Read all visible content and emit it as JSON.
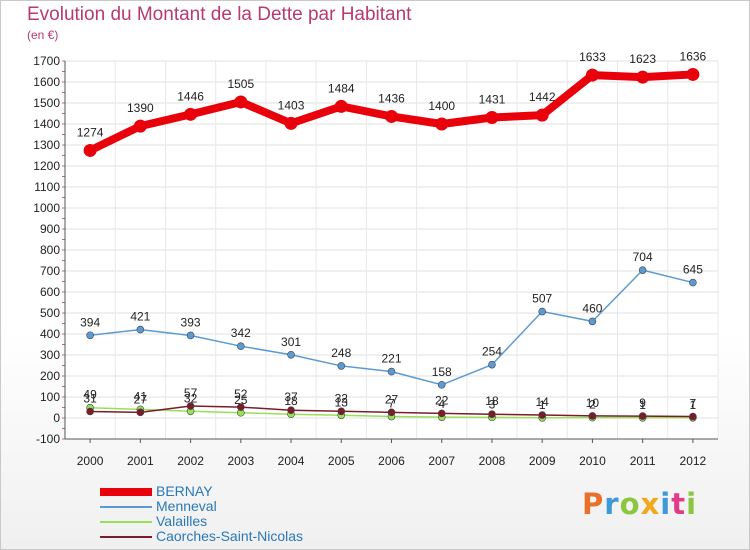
{
  "chart_data": {
    "type": "line",
    "title": "Evolution du Montant de la Dette par Habitant",
    "subtitle": "(en €)",
    "x": [
      "2000",
      "2001",
      "2002",
      "2003",
      "2004",
      "2005",
      "2006",
      "2007",
      "2008",
      "2009",
      "2010",
      "2011",
      "2012"
    ],
    "ylim": [
      -100,
      1700
    ],
    "yticks": [
      -100,
      0,
      100,
      200,
      300,
      400,
      500,
      600,
      700,
      800,
      900,
      1000,
      1100,
      1200,
      1300,
      1400,
      1500,
      1600,
      1700
    ],
    "grid": true,
    "legend_placement": "bottom-left",
    "series": [
      {
        "name": "BERNAY",
        "color": "#e8000b",
        "values": [
          1274,
          1390,
          1446,
          1505,
          1403,
          1484,
          1436,
          1400,
          1431,
          1442,
          1633,
          1623,
          1636
        ]
      },
      {
        "name": "Menneval",
        "color": "#5b9bd2",
        "values": [
          394,
          421,
          393,
          342,
          301,
          248,
          221,
          158,
          254,
          507,
          460,
          704,
          645
        ]
      },
      {
        "name": "Valailles",
        "color": "#96e05a",
        "values": [
          49,
          41,
          32,
          25,
          18,
          13,
          7,
          4,
          3,
          1,
          2,
          1,
          1
        ]
      },
      {
        "name": "Caorches-Saint-Nicolas",
        "color": "#7a1d2a",
        "values": [
          31,
          27,
          57,
          52,
          37,
          32,
          27,
          22,
          18,
          14,
          10,
          9,
          7
        ]
      }
    ]
  },
  "branding": {
    "logo_text": "Proxiti",
    "logo_colors": [
      "#e8702a",
      "#3d9ad6",
      "#8cc63f",
      "#f2a81d",
      "#3d9ad6",
      "#e03c8a",
      "#8cc63f"
    ]
  }
}
